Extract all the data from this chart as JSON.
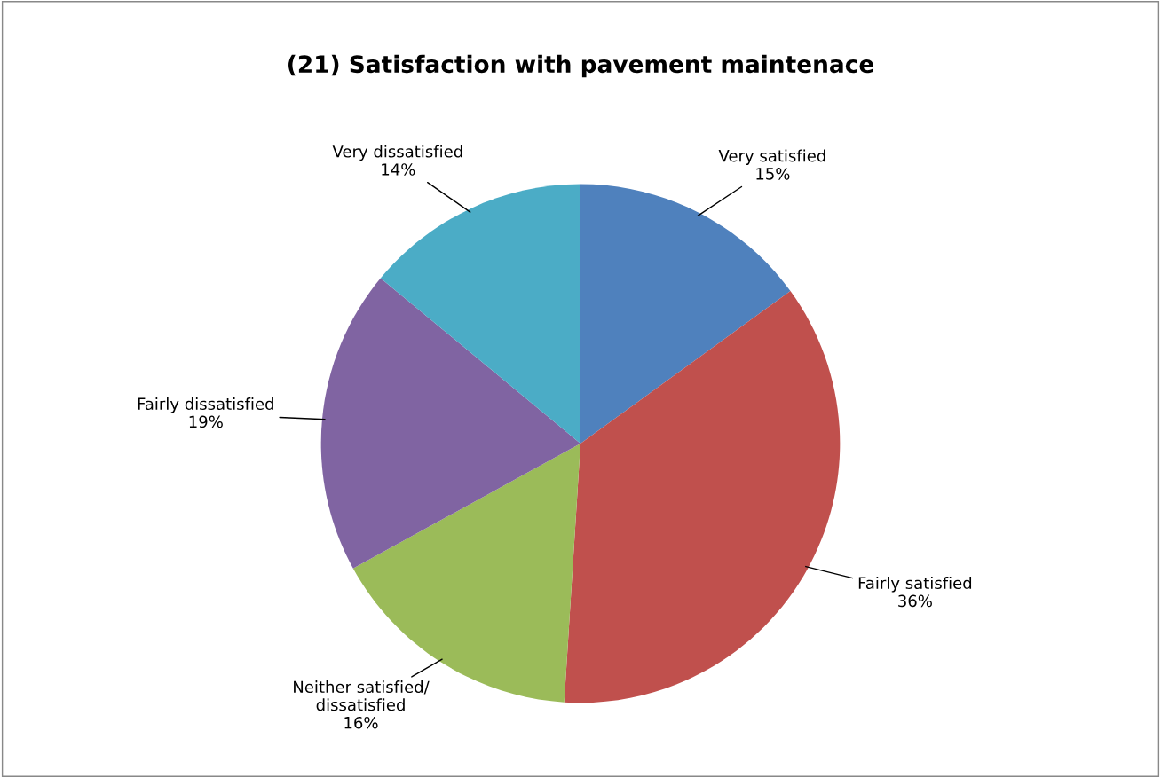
{
  "chart_data": {
    "type": "pie",
    "title": "(21) Satisfaction with pavement maintenace",
    "categories": [
      "Very satisfied",
      "Fairly satisfied",
      "Neither satisfied/\ndissatisfied",
      "Fairly dissatisfied",
      "Very dissatisfied"
    ],
    "values": [
      15,
      36,
      16,
      19,
      14
    ],
    "value_labels": [
      "15%",
      "36%",
      "16%",
      "19%",
      "14%"
    ],
    "colors": [
      "#4f81bd",
      "#c0504d",
      "#9bbb59",
      "#8064a2",
      "#4bacc6"
    ],
    "legend": false
  }
}
